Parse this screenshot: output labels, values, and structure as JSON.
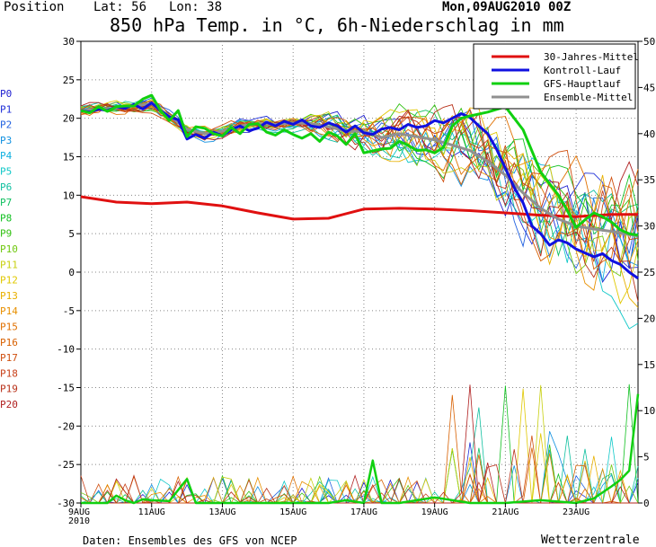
{
  "header": {
    "position_label": "Position",
    "lat_label": "Lat: 56",
    "lon_label": "Lon: 38",
    "date": "Mon,09AUG2010 00Z",
    "title": "850 hPa Temp. in °C, 6h-Niederschlag in mm"
  },
  "footer": {
    "source": "Daten: Ensembles des GFS von NCEP",
    "brand": "Wetterzentrale"
  },
  "colors": {
    "background": "#ffffff",
    "grid": "#888888",
    "mean30": "#e01010",
    "control": "#1010e0",
    "main": "#10d010",
    "ensemble_mean": "#909090"
  },
  "chart_data": {
    "type": "line",
    "x_unit": "days since 09AUG2010 00Z",
    "xlim": [
      0,
      15.75
    ],
    "x_ticks": [
      {
        "x": 0,
        "label": "9AUG",
        "sub": "2010"
      },
      {
        "x": 2,
        "label": "11AUG"
      },
      {
        "x": 4,
        "label": "13AUG"
      },
      {
        "x": 6,
        "label": "15AUG"
      },
      {
        "x": 8,
        "label": "17AUG"
      },
      {
        "x": 10,
        "label": "19AUG"
      },
      {
        "x": 12,
        "label": "21AUG"
      },
      {
        "x": 14,
        "label": "23AUG"
      }
    ],
    "y_left": {
      "label": "°C",
      "ylim": [
        -30,
        30
      ],
      "ticks": [
        30,
        25,
        20,
        15,
        10,
        5,
        0,
        -5,
        -10,
        -15,
        -20,
        -25,
        -30
      ]
    },
    "y_right": {
      "label": "mm",
      "ylim": [
        0,
        50
      ],
      "ticks": [
        50,
        45,
        40,
        35,
        30,
        25,
        20,
        15,
        10,
        5,
        0
      ]
    },
    "grid": true,
    "legend_position": "top-right",
    "legend": [
      {
        "label": "30-Jahres-Mittel",
        "color": "#e01010"
      },
      {
        "label": "Kontroll-Lauf",
        "color": "#1010e0"
      },
      {
        "label": "GFS-Hauptlauf",
        "color": "#10d010"
      },
      {
        "label": "Ensemble-Mittel",
        "color": "#909090"
      }
    ],
    "member_labels": [
      "P0",
      "P1",
      "P2",
      "P3",
      "P4",
      "P5",
      "P6",
      "P7",
      "P8",
      "P9",
      "P10",
      "P11",
      "P12",
      "P13",
      "P14",
      "P15",
      "P16",
      "P17",
      "P18",
      "P19",
      "P20"
    ],
    "member_colors": [
      "#2020d0",
      "#2030d8",
      "#2060e0",
      "#1090e0",
      "#10b0e0",
      "#10c8c8",
      "#10c0a0",
      "#10c060",
      "#10c020",
      "#30c010",
      "#70c810",
      "#c8d010",
      "#e0c800",
      "#e8b000",
      "#e89000",
      "#e07000",
      "#d86000",
      "#d05010",
      "#c84018",
      "#b83018",
      "#b02020"
    ],
    "series": [
      {
        "name": "30-Jahres-Mittel",
        "axis": "left",
        "x": [
          0,
          1,
          2,
          3,
          4,
          5,
          6,
          7,
          8,
          9,
          10,
          11,
          12,
          13,
          14,
          15,
          15.75
        ],
        "values": [
          9.8,
          9.1,
          8.9,
          9.1,
          8.6,
          7.7,
          6.9,
          7.0,
          8.2,
          8.3,
          8.2,
          8.0,
          7.7,
          7.4,
          7.2,
          7.5,
          7.5
        ]
      },
      {
        "name": "Kontroll-Lauf",
        "axis": "left",
        "x": [
          0,
          0.25,
          0.5,
          0.75,
          1,
          1.25,
          1.5,
          1.75,
          2,
          2.25,
          2.5,
          2.75,
          3,
          3.25,
          3.5,
          3.75,
          4,
          4.25,
          4.5,
          4.75,
          5,
          5.25,
          5.5,
          5.75,
          6,
          6.25,
          6.5,
          6.75,
          7,
          7.25,
          7.5,
          7.75,
          8,
          8.25,
          8.5,
          8.75,
          9,
          9.25,
          9.5,
          9.75,
          10,
          10.25,
          10.5,
          10.75,
          11,
          11.25,
          11.5,
          11.75,
          12,
          12.25,
          12.5,
          12.75,
          13,
          13.25,
          13.5,
          13.75,
          14,
          14.25,
          14.5,
          14.75,
          15,
          15.25,
          15.5,
          15.75
        ],
        "values": [
          21.0,
          20.8,
          21.2,
          21.0,
          21.5,
          21.3,
          21.8,
          21.2,
          22.0,
          21.0,
          20.2,
          19.8,
          17.3,
          17.9,
          17.4,
          18.2,
          17.7,
          18.5,
          19.0,
          18.4,
          18.7,
          19.5,
          19.0,
          19.6,
          19.2,
          19.8,
          19.0,
          18.8,
          19.4,
          19.0,
          18.2,
          19.0,
          18.1,
          17.9,
          18.6,
          18.8,
          18.5,
          19.2,
          18.8,
          19.0,
          19.7,
          19.4,
          20.0,
          20.6,
          20.1,
          19.0,
          18.0,
          16.0,
          13.5,
          11.0,
          9.0,
          6.0,
          5.0,
          3.5,
          4.2,
          3.8,
          3.0,
          2.5,
          2.0,
          2.4,
          1.5,
          1.0,
          0.0,
          -0.8
        ]
      },
      {
        "name": "GFS-Hauptlauf",
        "axis": "left",
        "x": [
          0,
          0.25,
          0.5,
          0.75,
          1,
          1.25,
          1.5,
          1.75,
          2,
          2.25,
          2.5,
          2.75,
          3,
          3.25,
          3.5,
          3.75,
          4,
          4.25,
          4.5,
          4.75,
          5,
          5.25,
          5.5,
          5.75,
          6,
          6.25,
          6.5,
          6.75,
          7,
          7.25,
          7.5,
          7.75,
          8,
          8.5,
          8.75,
          9,
          9.25,
          9.5,
          9.75,
          10,
          10.25,
          10.5,
          10.75,
          11,
          11.5,
          12,
          12.5,
          13,
          13.25,
          13.5,
          13.75,
          14,
          14.25,
          14.5,
          14.75,
          15,
          15.25,
          15.5,
          15.75
        ],
        "values": [
          21.0,
          20.7,
          21.5,
          20.9,
          21.5,
          21.6,
          21.6,
          22.5,
          23.0,
          21.0,
          19.7,
          21.0,
          17.6,
          18.9,
          18.7,
          18.0,
          17.7,
          18.8,
          18.0,
          19.2,
          19.3,
          18.2,
          17.8,
          18.5,
          17.9,
          17.4,
          18.0,
          17.0,
          18.2,
          17.7,
          16.6,
          18.0,
          15.5,
          16.0,
          16.1,
          17.0,
          16.5,
          15.8,
          15.9,
          15.5,
          16.2,
          19.0,
          20.0,
          20.3,
          20.8,
          21.5,
          18.5,
          13.0,
          11.5,
          10.0,
          8.0,
          5.8,
          6.8,
          7.7,
          7.2,
          6.5,
          5.5,
          5.0,
          4.8
        ]
      },
      {
        "name": "Ensemble-Mittel",
        "axis": "left",
        "x": [
          0,
          0.5,
          1,
          1.5,
          2,
          2.5,
          3,
          3.5,
          4,
          4.5,
          5,
          5.5,
          6,
          6.5,
          7,
          7.5,
          8,
          8.5,
          9,
          9.5,
          10,
          10.5,
          11,
          11.5,
          12,
          12.5,
          13,
          13.5,
          14,
          14.5,
          15,
          15.5,
          15.75
        ],
        "values": [
          21.0,
          21.2,
          21.3,
          21.6,
          21.9,
          20.3,
          18.6,
          18.0,
          18.3,
          19.0,
          19.3,
          19.2,
          19.4,
          19.3,
          18.9,
          18.3,
          18.3,
          17.5,
          18.0,
          17.6,
          17.2,
          16.5,
          15.8,
          14.4,
          12.6,
          10.3,
          8.3,
          6.9,
          6.0,
          5.6,
          5.3,
          4.9,
          4.7
        ]
      },
      {
        "name": "Niederschlag GFS-Hauptlauf",
        "axis": "right",
        "x": [
          0,
          0.75,
          1,
          1.25,
          1.5,
          1.75,
          2,
          2.5,
          3,
          3.25,
          4,
          7,
          7.5,
          8,
          8.25,
          8.5,
          9,
          10,
          11,
          12,
          13,
          14,
          14.5,
          15,
          15.25,
          15.5,
          15.75
        ],
        "values": [
          0,
          0,
          0.8,
          0.3,
          0,
          0.4,
          0.3,
          0.2,
          2.6,
          0,
          0,
          0,
          0.3,
          0,
          4.6,
          0,
          0,
          0.6,
          0,
          0,
          0.3,
          0,
          0.5,
          1.8,
          2.5,
          3.5,
          11.8
        ]
      }
    ]
  }
}
